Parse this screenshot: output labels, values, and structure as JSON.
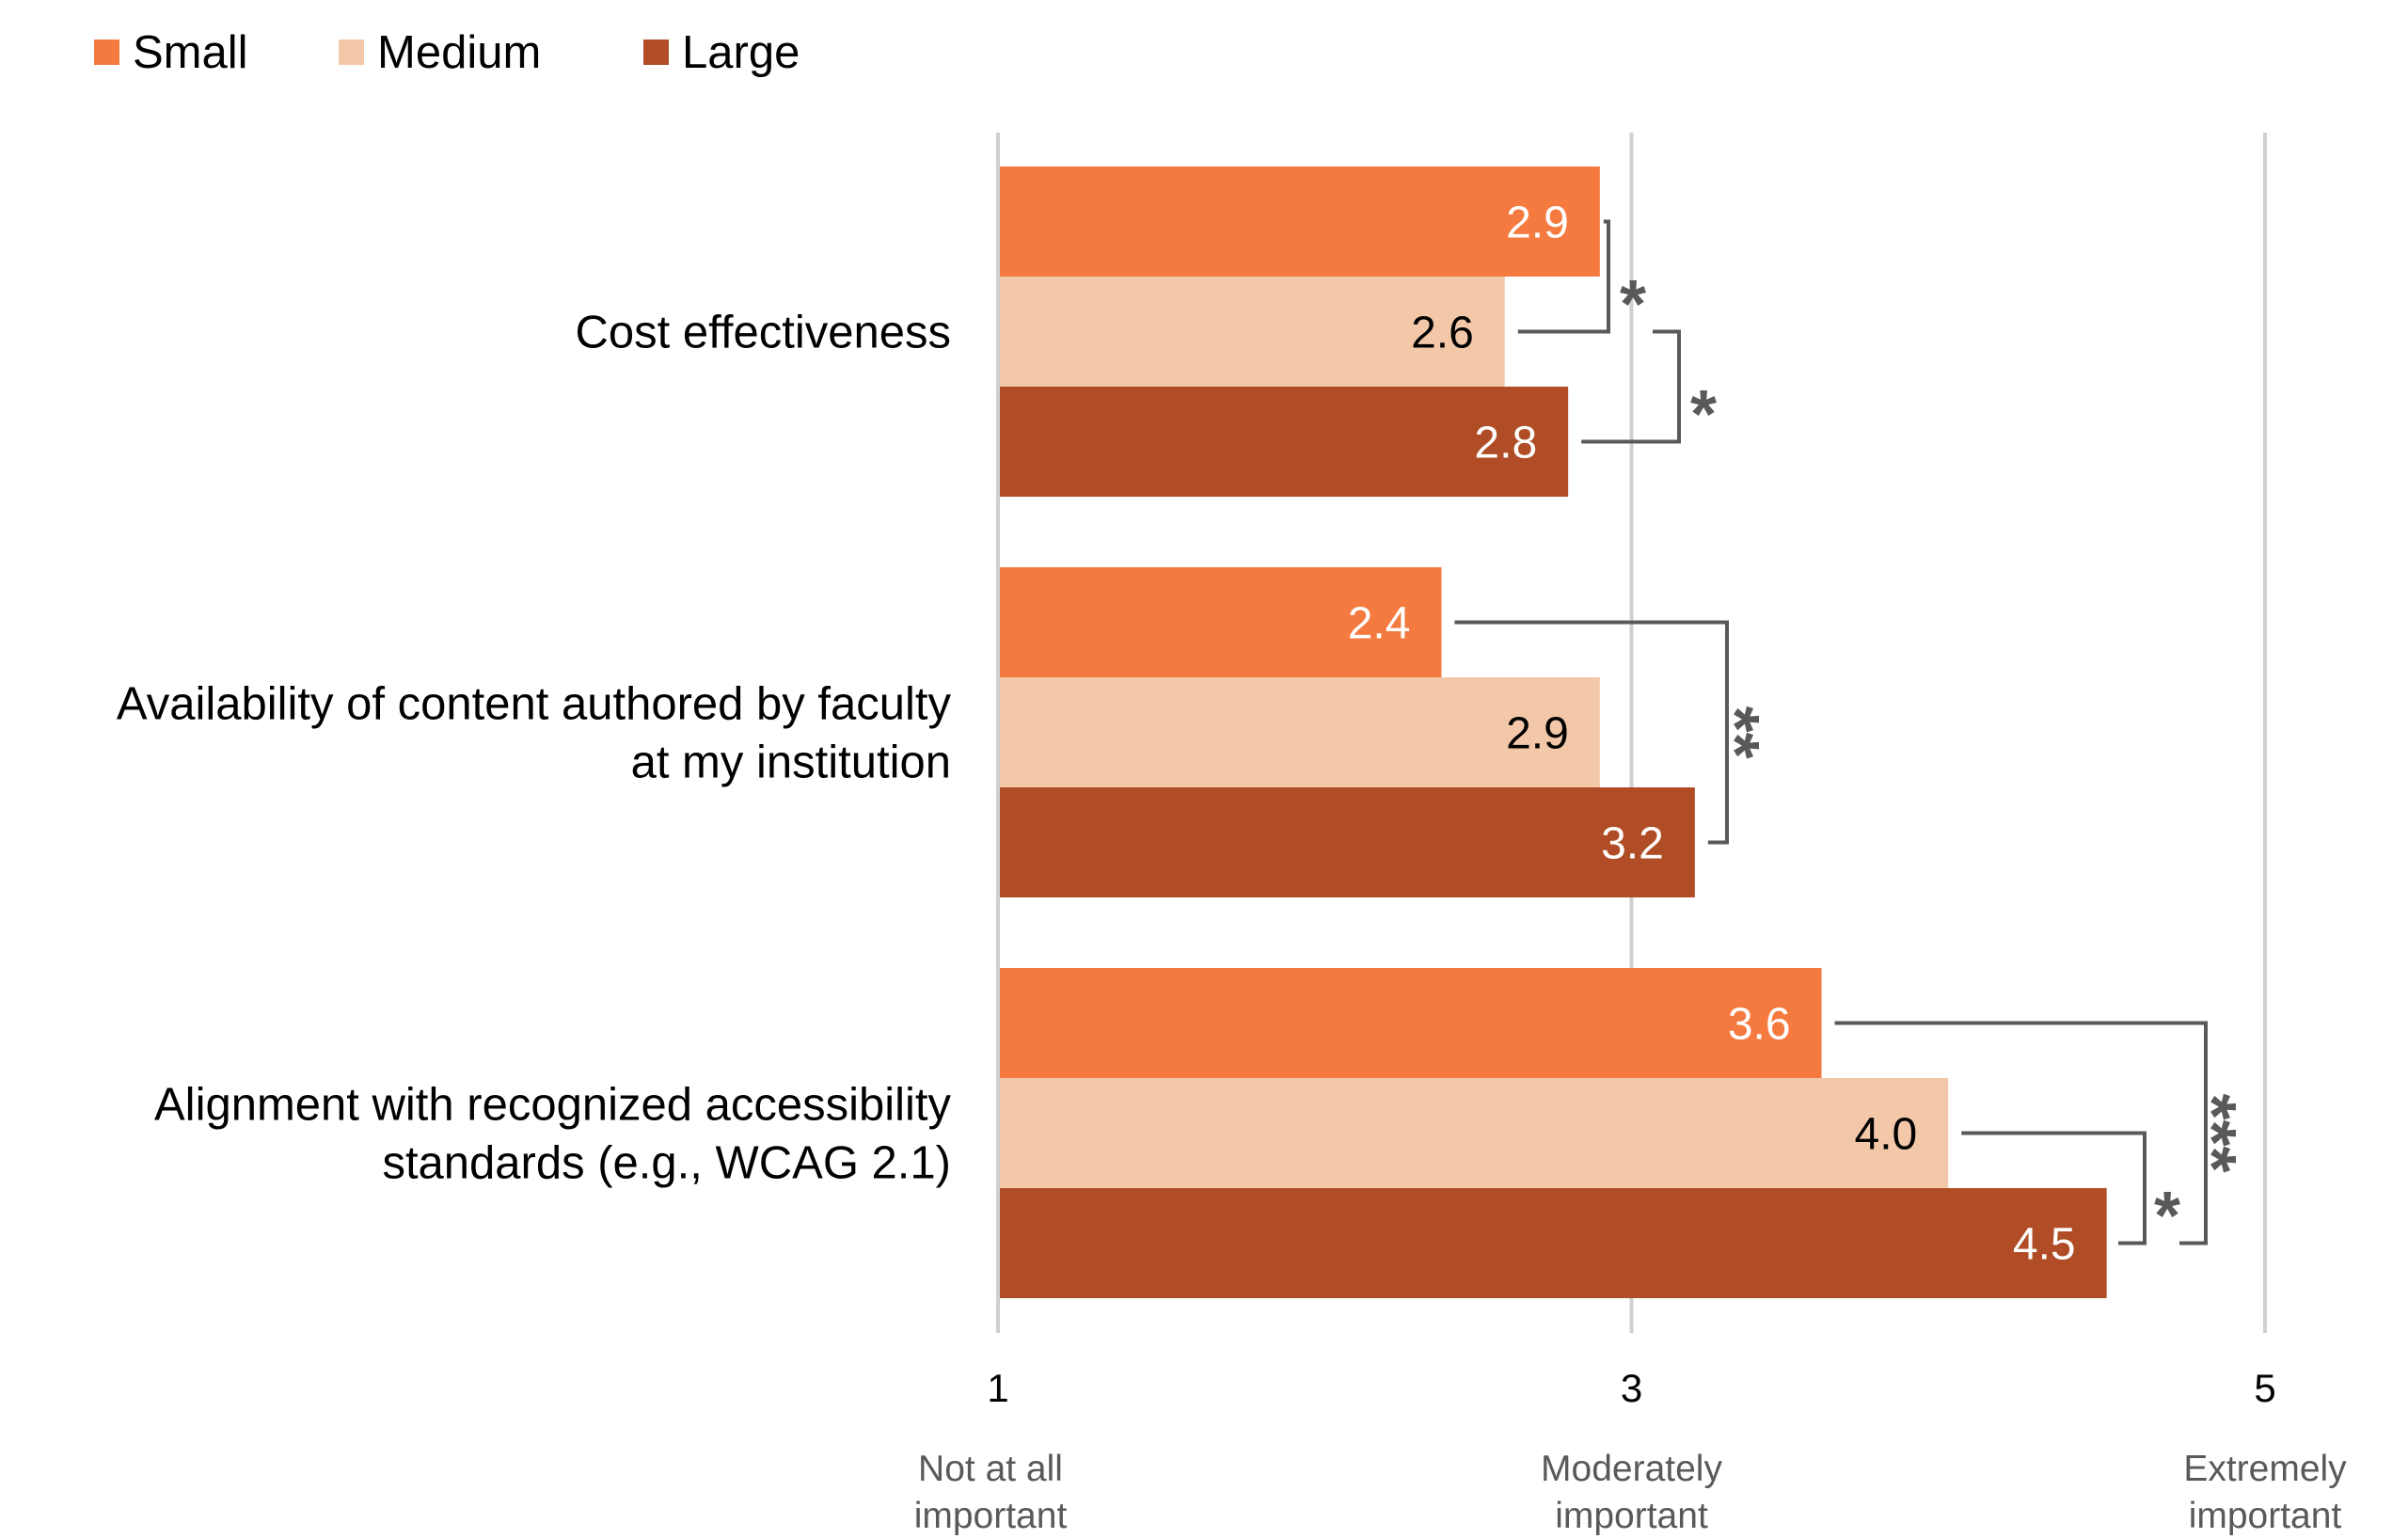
{
  "chart_data": {
    "type": "bar",
    "orientation": "horizontal",
    "categories": [
      [
        "Cost effectiveness"
      ],
      [
        "Availability of content authored by faculty",
        "at my institution"
      ],
      [
        "Alignment with recognized accessibility",
        "standards (e.g., WCAG 2.1)"
      ]
    ],
    "series": [
      {
        "name": "Small",
        "color": "#F47A40",
        "label_color": "#FFFFFF",
        "values": [
          2.9,
          2.4,
          3.6
        ]
      },
      {
        "name": "Medium",
        "color": "#F3C8A9",
        "label_color": "#000000",
        "values": [
          2.6,
          2.9,
          4.0
        ]
      },
      {
        "name": "Large",
        "color": "#B04D26",
        "label_color": "#FFFFFF",
        "values": [
          2.8,
          3.2,
          4.5
        ]
      }
    ],
    "value_labels": [
      [
        "2.9",
        "2.6",
        "2.8"
      ],
      [
        "2.4",
        "2.9",
        "3.2"
      ],
      [
        "3.6",
        "4.0",
        "4.5"
      ]
    ],
    "xlim": [
      1,
      5
    ],
    "x_ticks": [
      {
        "value": 1,
        "label": "1",
        "sublabel": [
          "Not at all",
          "important"
        ]
      },
      {
        "value": 3,
        "label": "3",
        "sublabel": [
          "Moderately",
          "important"
        ]
      },
      {
        "value": 5,
        "label": "5",
        "sublabel": [
          "Extremely",
          "important"
        ]
      }
    ],
    "grid": true,
    "legend": "top-left",
    "significance": [
      {
        "category": 0,
        "between": [
          "Small",
          "Medium"
        ],
        "label": "*"
      },
      {
        "category": 0,
        "between": [
          "Medium",
          "Large"
        ],
        "label": "*"
      },
      {
        "category": 1,
        "between": [
          "Small",
          "Large"
        ],
        "label": "**"
      },
      {
        "category": 2,
        "between": [
          "Medium",
          "Large"
        ],
        "label": "*"
      },
      {
        "category": 2,
        "between": [
          "Small",
          "Large"
        ],
        "label": "***"
      }
    ],
    "colors": {
      "grid": "#D0D0D0",
      "bracket": "#595959",
      "text": "#000000",
      "sublabel": "#595959"
    }
  }
}
